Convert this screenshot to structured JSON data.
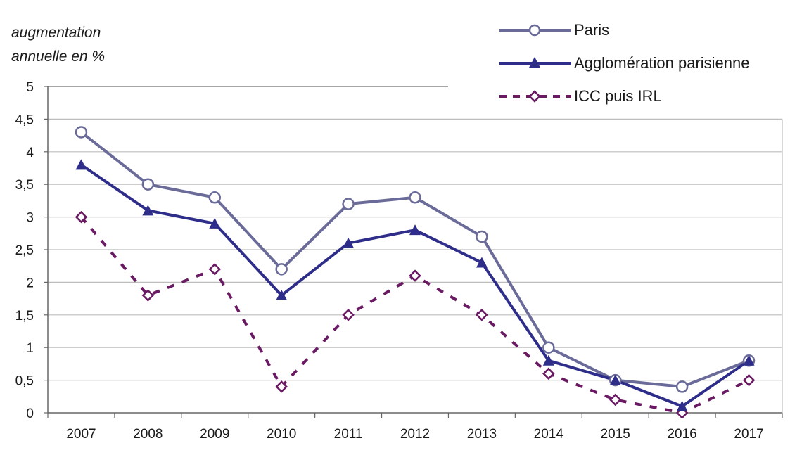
{
  "chart_data": {
    "type": "line",
    "title": "",
    "ylabel_line1": "augmentation",
    "ylabel_line2": "annuelle en %",
    "xlabel": "",
    "categories": [
      "2007",
      "2008",
      "2009",
      "2010",
      "2011",
      "2012",
      "2013",
      "2014",
      "2015",
      "2016",
      "2017"
    ],
    "ylim": [
      0,
      5
    ],
    "yticks": [
      "0",
      "0,5",
      "1",
      "1,5",
      "2",
      "2,5",
      "3",
      "3,5",
      "4",
      "4,5",
      "5"
    ],
    "grid": true,
    "legend_position": "top-right",
    "series": [
      {
        "name": "Paris",
        "color": "#6b6b99",
        "marker": "circle-open",
        "style": "solid",
        "values": [
          4.3,
          3.5,
          3.3,
          2.2,
          3.2,
          3.3,
          2.7,
          1.0,
          0.5,
          0.4,
          0.8
        ]
      },
      {
        "name": "Agglomération parisienne",
        "color": "#2e2e8a",
        "marker": "triangle-filled",
        "style": "solid",
        "values": [
          3.8,
          3.1,
          2.9,
          1.8,
          2.6,
          2.8,
          2.3,
          0.8,
          0.5,
          0.1,
          0.8
        ]
      },
      {
        "name": "ICC puis IRL",
        "color": "#6a1a63",
        "marker": "diamond-open",
        "style": "dashed",
        "values": [
          3.0,
          1.8,
          2.2,
          0.4,
          1.5,
          2.1,
          1.5,
          0.6,
          0.2,
          0.0,
          0.5
        ]
      }
    ]
  }
}
